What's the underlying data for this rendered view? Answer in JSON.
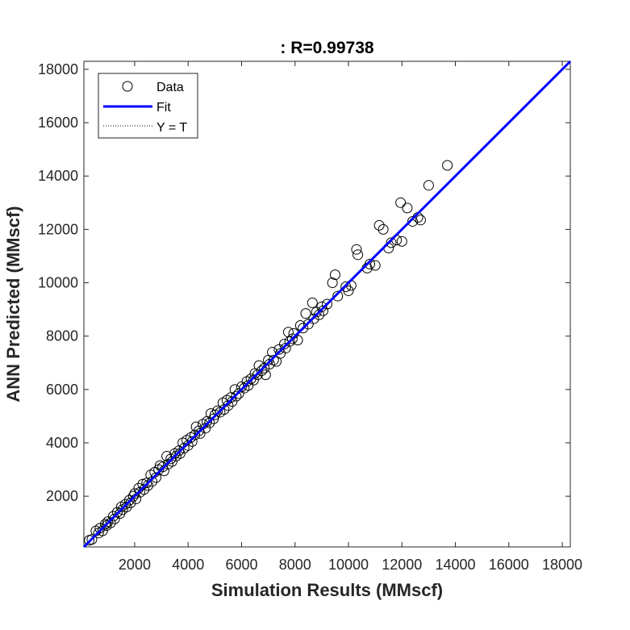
{
  "chart_data": {
    "type": "scatter",
    "title": ": R=0.99738",
    "xlabel": "Simulation Results (MMscf)",
    "ylabel": "ANN Predicted (MMscf)",
    "xlim": [
      100,
      18300
    ],
    "ylim": [
      100,
      18300
    ],
    "xticks": [
      2000,
      4000,
      6000,
      8000,
      10000,
      12000,
      14000,
      16000,
      18000
    ],
    "yticks": [
      2000,
      4000,
      6000,
      8000,
      10000,
      12000,
      14000,
      16000,
      18000
    ],
    "grid": false,
    "legend_position": "top-left",
    "legend": [
      "Data",
      "Fit",
      "Y = T"
    ],
    "colors": {
      "data": "#000000",
      "fit": "#0000ff",
      "identity": "#000000",
      "axes": "#262626"
    },
    "fit_line": {
      "slope": 1.0,
      "intercept": 0
    },
    "identity_line": {
      "slope": 1.0,
      "intercept": 0
    },
    "series": [
      {
        "name": "Data",
        "points": [
          [
            300,
            350
          ],
          [
            400,
            380
          ],
          [
            550,
            700
          ],
          [
            650,
            620
          ],
          [
            700,
            800
          ],
          [
            800,
            700
          ],
          [
            900,
            950
          ],
          [
            950,
            900
          ],
          [
            1000,
            1050
          ],
          [
            1100,
            1000
          ],
          [
            1200,
            1250
          ],
          [
            1250,
            1150
          ],
          [
            1350,
            1400
          ],
          [
            1450,
            1350
          ],
          [
            1500,
            1600
          ],
          [
            1550,
            1500
          ],
          [
            1650,
            1700
          ],
          [
            1700,
            1600
          ],
          [
            1800,
            1850
          ],
          [
            1850,
            1750
          ],
          [
            1950,
            2000
          ],
          [
            2000,
            2100
          ],
          [
            2050,
            1900
          ],
          [
            2150,
            2300
          ],
          [
            2200,
            2150
          ],
          [
            2300,
            2450
          ],
          [
            2350,
            2250
          ],
          [
            2450,
            2500
          ],
          [
            2500,
            2400
          ],
          [
            2600,
            2800
          ],
          [
            2650,
            2550
          ],
          [
            2750,
            2900
          ],
          [
            2800,
            2700
          ],
          [
            2900,
            3000
          ],
          [
            2950,
            3150
          ],
          [
            3050,
            3100
          ],
          [
            3100,
            2950
          ],
          [
            3200,
            3500
          ],
          [
            3250,
            3200
          ],
          [
            3350,
            3400
          ],
          [
            3400,
            3300
          ],
          [
            3500,
            3600
          ],
          [
            3550,
            3500
          ],
          [
            3650,
            3700
          ],
          [
            3700,
            3600
          ],
          [
            3800,
            4000
          ],
          [
            3850,
            3800
          ],
          [
            3950,
            4100
          ],
          [
            4000,
            3900
          ],
          [
            4100,
            4200
          ],
          [
            4150,
            4050
          ],
          [
            4250,
            4300
          ],
          [
            4300,
            4600
          ],
          [
            4400,
            4450
          ],
          [
            4450,
            4350
          ],
          [
            4550,
            4700
          ],
          [
            4650,
            4550
          ],
          [
            4700,
            4800
          ],
          [
            4800,
            4750
          ],
          [
            4850,
            5100
          ],
          [
            4950,
            4900
          ],
          [
            5000,
            5050
          ],
          [
            5100,
            5200
          ],
          [
            5200,
            5150
          ],
          [
            5300,
            5500
          ],
          [
            5350,
            5250
          ],
          [
            5450,
            5600
          ],
          [
            5500,
            5400
          ],
          [
            5600,
            5700
          ],
          [
            5650,
            5550
          ],
          [
            5750,
            6000
          ],
          [
            5800,
            5750
          ],
          [
            5900,
            5850
          ],
          [
            6000,
            6100
          ],
          [
            6100,
            6050
          ],
          [
            6200,
            6300
          ],
          [
            6250,
            6150
          ],
          [
            6350,
            6400
          ],
          [
            6450,
            6350
          ],
          [
            6500,
            6600
          ],
          [
            6600,
            6550
          ],
          [
            6650,
            6900
          ],
          [
            6750,
            6700
          ],
          [
            6850,
            6800
          ],
          [
            6900,
            6550
          ],
          [
            7000,
            7100
          ],
          [
            7050,
            6950
          ],
          [
            7150,
            7400
          ],
          [
            7200,
            7100
          ],
          [
            7300,
            7050
          ],
          [
            7400,
            7500
          ],
          [
            7450,
            7350
          ],
          [
            7600,
            7700
          ],
          [
            7650,
            7550
          ],
          [
            7750,
            8150
          ],
          [
            7800,
            7800
          ],
          [
            7900,
            7900
          ],
          [
            7950,
            8100
          ],
          [
            8100,
            7850
          ],
          [
            8200,
            8400
          ],
          [
            8300,
            8300
          ],
          [
            8400,
            8850
          ],
          [
            8500,
            8450
          ],
          [
            8650,
            9250
          ],
          [
            8700,
            8650
          ],
          [
            8800,
            8900
          ],
          [
            8900,
            8800
          ],
          [
            9000,
            9100
          ],
          [
            9050,
            8950
          ],
          [
            9200,
            9200
          ],
          [
            9400,
            10000
          ],
          [
            9500,
            10300
          ],
          [
            9600,
            9500
          ],
          [
            9900,
            9850
          ],
          [
            10000,
            9700
          ],
          [
            10100,
            9900
          ],
          [
            10300,
            11250
          ],
          [
            10350,
            11050
          ],
          [
            10700,
            10550
          ],
          [
            10800,
            10700
          ],
          [
            11000,
            10650
          ],
          [
            11150,
            12150
          ],
          [
            11300,
            12000
          ],
          [
            11500,
            11300
          ],
          [
            11600,
            11500
          ],
          [
            11800,
            11600
          ],
          [
            11950,
            13000
          ],
          [
            12000,
            11550
          ],
          [
            12200,
            12800
          ],
          [
            12400,
            12300
          ],
          [
            12600,
            12450
          ],
          [
            12700,
            12350
          ],
          [
            13000,
            13650
          ],
          [
            13700,
            14400
          ]
        ]
      }
    ]
  }
}
